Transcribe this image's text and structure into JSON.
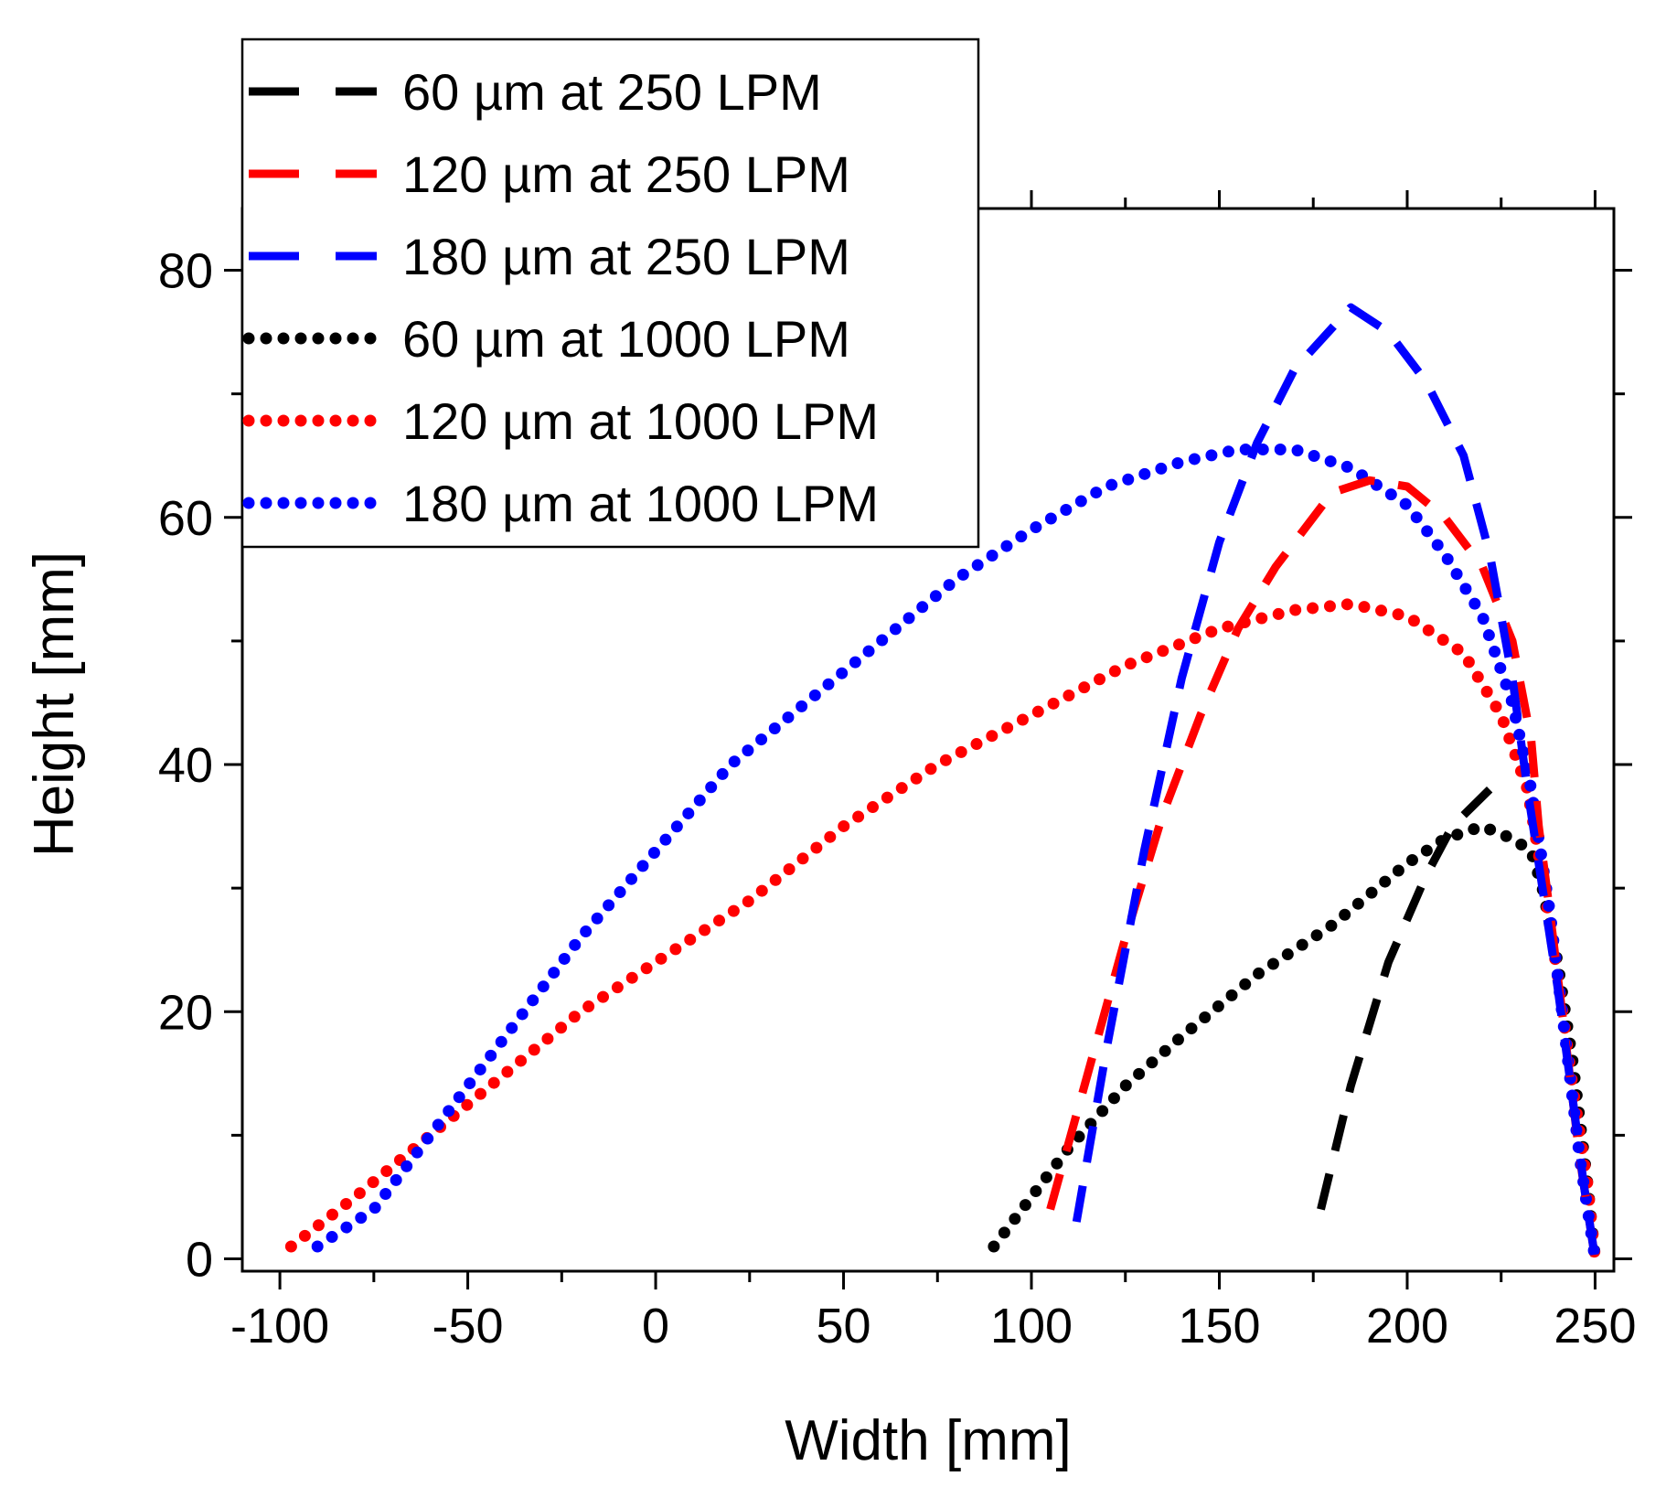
{
  "chart_data": {
    "type": "line",
    "title": "",
    "xlabel": "Width [mm]",
    "ylabel": "Height [mm]",
    "xlim": [
      -110,
      255
    ],
    "ylim": [
      -1,
      85
    ],
    "xticks": [
      -100,
      -50,
      0,
      50,
      100,
      150,
      200,
      250
    ],
    "yticks": [
      0,
      20,
      40,
      60,
      80
    ],
    "legend_position": "top-left",
    "series": [
      {
        "name": "60 µm at 250 LPM",
        "color": "#000000",
        "style": "dashed",
        "x": [
          177,
          185,
          195,
          205,
          212,
          222
        ],
        "y": [
          4,
          14,
          24,
          31,
          35,
          38
        ]
      },
      {
        "name": "120 µm at 250 LPM",
        "color": "#ff0000",
        "style": "dashed",
        "x": [
          105,
          115,
          125,
          135,
          145,
          155,
          165,
          180,
          190,
          200,
          210,
          220,
          228,
          233,
          235,
          238,
          242,
          246,
          250
        ],
        "y": [
          4,
          15,
          26,
          36,
          44,
          51,
          56,
          62,
          63,
          62.5,
          60,
          56,
          50,
          42,
          35,
          28,
          18,
          8,
          0
        ]
      },
      {
        "name": "180 µm at 250 LPM",
        "color": "#0000ff",
        "style": "dashed",
        "x": [
          112,
          120,
          130,
          140,
          150,
          160,
          170,
          185,
          195,
          205,
          215,
          222,
          228,
          232,
          236,
          240,
          244,
          247,
          250
        ],
        "y": [
          3,
          17,
          33,
          47,
          58,
          66,
          72,
          77,
          75,
          71,
          65,
          57,
          47,
          38,
          30,
          22,
          13,
          6,
          0
        ]
      },
      {
        "name": "60 µm at 1000 LPM",
        "color": "#000000",
        "style": "dotted",
        "x": [
          90,
          100,
          110,
          125,
          140,
          160,
          180,
          200,
          210,
          220,
          228,
          233,
          236,
          240,
          244,
          248,
          250
        ],
        "y": [
          1,
          5,
          9,
          14,
          18,
          23,
          27,
          32,
          34,
          35,
          34,
          33,
          30,
          24,
          16,
          6,
          0
        ]
      },
      {
        "name": "120 µm at 1000 LPM",
        "color": "#ff0000",
        "style": "dotted",
        "x": [
          -97,
          -80,
          -60,
          -40,
          -20,
          0,
          25,
          50,
          75,
          100,
          125,
          150,
          170,
          185,
          200,
          215,
          225,
          232,
          236,
          240,
          244,
          248,
          250
        ],
        "y": [
          1,
          5,
          10,
          15,
          20,
          24,
          29,
          35,
          40,
          44,
          48,
          51,
          52.5,
          53,
          52,
          49,
          44,
          38,
          31,
          23,
          14,
          6,
          0
        ]
      },
      {
        "name": "180 µm at 1000 LPM",
        "color": "#0000ff",
        "style": "dotted",
        "x": [
          -90,
          -75,
          -60,
          -40,
          -20,
          0,
          20,
          40,
          60,
          80,
          100,
          120,
          140,
          155,
          170,
          185,
          200,
          210,
          220,
          228,
          233,
          238,
          242,
          246,
          250
        ],
        "y": [
          1,
          4,
          10,
          18,
          26,
          33,
          40,
          45,
          50,
          55,
          59,
          62.5,
          64.5,
          65.5,
          65.5,
          64,
          61,
          57,
          52,
          45,
          38,
          28,
          18,
          8,
          0
        ]
      }
    ]
  }
}
